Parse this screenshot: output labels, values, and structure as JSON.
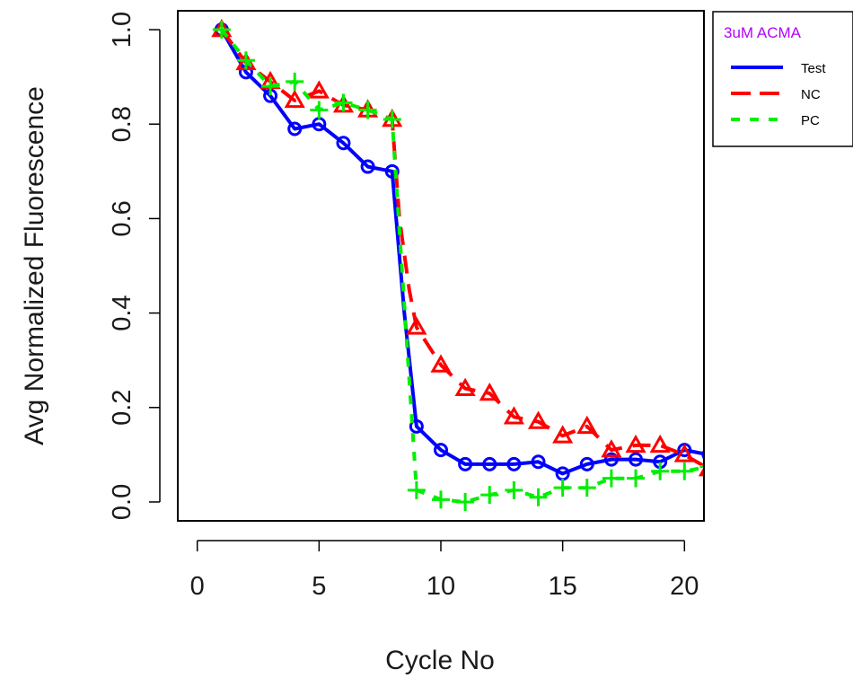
{
  "chart_data": {
    "type": "line",
    "xlabel": "Cycle No",
    "ylabel": "Avg Normalized Fluorescence",
    "xlim": [
      -0.8,
      20.8
    ],
    "ylim": [
      -0.04,
      1.04
    ],
    "xticks": [
      0,
      5,
      10,
      15,
      20
    ],
    "yticks": [
      0.0,
      0.2,
      0.4,
      0.6,
      0.8,
      1.0
    ],
    "xtick_labels": [
      "0",
      "5",
      "10",
      "15",
      "20"
    ],
    "ytick_labels": [
      "0.0",
      "0.2",
      "0.4",
      "0.6",
      "0.8",
      "1.0"
    ],
    "grid": false,
    "legend": {
      "title": "3uM ACMA",
      "title_color": "#b400ff",
      "placement": "outside-top-right"
    },
    "series": [
      {
        "name": "Test",
        "color": "#0000ff",
        "line": "solid",
        "marker": "circle",
        "x": [
          1,
          2,
          3,
          4,
          5,
          6,
          7,
          8,
          8.5,
          9,
          10,
          11,
          12,
          13,
          14,
          15,
          16,
          17,
          18,
          19,
          20,
          21
        ],
        "y": [
          1.0,
          0.91,
          0.86,
          0.79,
          0.8,
          0.76,
          0.71,
          0.7,
          0.4,
          0.16,
          0.11,
          0.08,
          0.08,
          0.08,
          0.085,
          0.06,
          0.08,
          0.09,
          0.09,
          0.085,
          0.11,
          0.1
        ]
      },
      {
        "name": "NC",
        "color": "#ff0000",
        "line": "dashed",
        "marker": "triangle",
        "x": [
          1,
          2,
          3,
          4,
          5,
          6,
          7,
          8,
          8.3,
          8.7,
          9,
          10,
          11,
          12,
          13,
          14,
          15,
          16,
          17,
          18,
          19,
          20,
          21
        ],
        "y": [
          1.0,
          0.93,
          0.89,
          0.85,
          0.87,
          0.84,
          0.83,
          0.81,
          0.6,
          0.45,
          0.37,
          0.29,
          0.24,
          0.23,
          0.18,
          0.17,
          0.14,
          0.16,
          0.11,
          0.12,
          0.12,
          0.1,
          0.07
        ]
      },
      {
        "name": "PC",
        "color": "#00ee00",
        "line": "dotted",
        "marker": "plus",
        "x": [
          1,
          2,
          3,
          4,
          5,
          6,
          7,
          8,
          9,
          10,
          11,
          12,
          13,
          14,
          15,
          16,
          17,
          18,
          19,
          20,
          21
        ],
        "y": [
          1.0,
          0.935,
          0.88,
          0.89,
          0.83,
          0.845,
          0.83,
          0.81,
          0.025,
          0.005,
          0.0,
          0.015,
          0.025,
          0.01,
          0.03,
          0.03,
          0.05,
          0.05,
          0.065,
          0.065,
          0.075
        ]
      }
    ]
  }
}
